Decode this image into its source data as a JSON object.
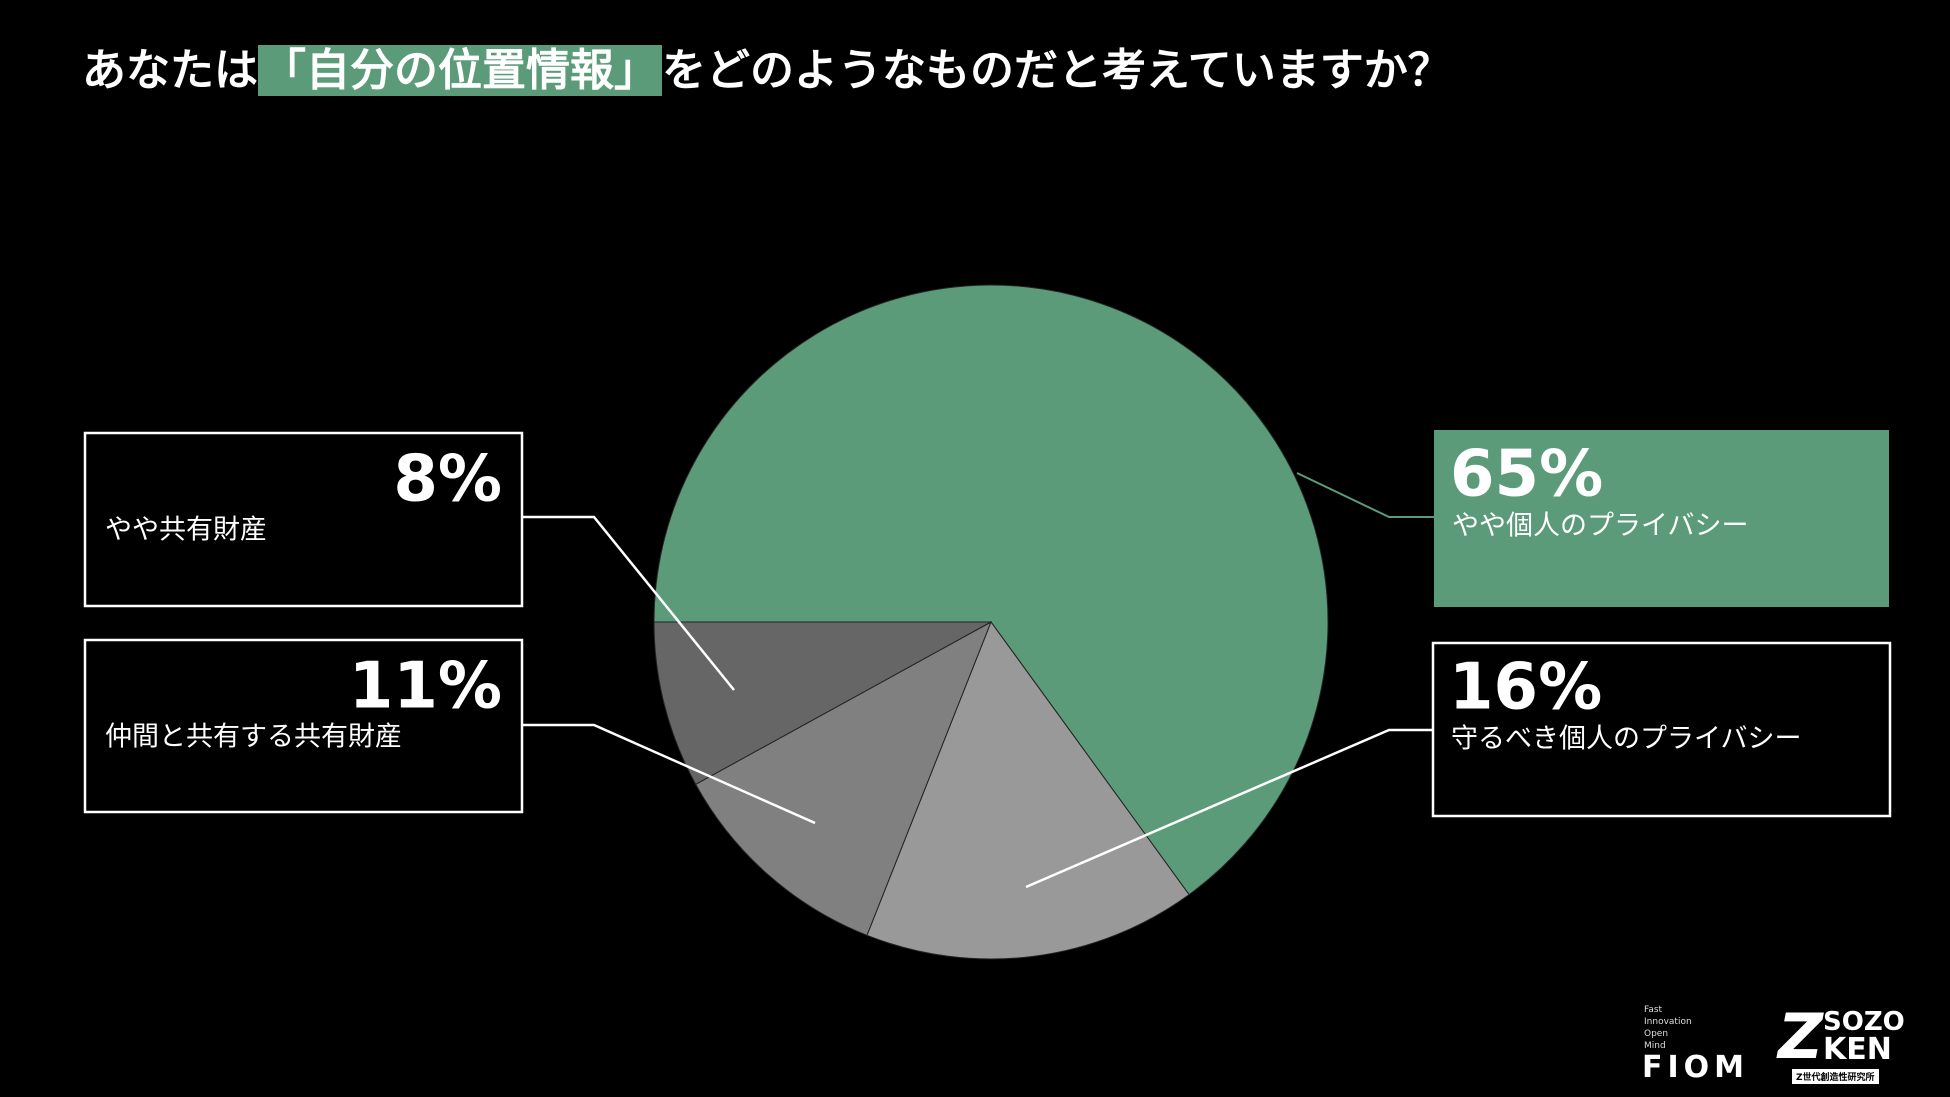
{
  "chart_data": {
    "type": "pie",
    "title": [
      "あなたは",
      "「自分の位置情報」",
      "をどのようなものだと考えていますか？"
    ],
    "categories": [
      "やや個人のプライバシー",
      "守るべき個人のプライバシー",
      "仲間と共有する共有財産",
      "やや共有財産"
    ],
    "values": [
      65,
      16,
      11,
      8
    ],
    "value_labels": [
      "65%",
      "16%",
      "11%",
      "8%"
    ],
    "colors": [
      "#5b9b79",
      "#999999",
      "#808080",
      "#666666"
    ]
  },
  "branding": {
    "fiom_tagline": [
      "Fast",
      "Innovation",
      "Open",
      "Mind"
    ],
    "fiom": "FIOM",
    "sozo_mark": "Z",
    "sozo_top": "SOZO",
    "sozo_bottom": "KEN",
    "sozo_sub": "Z世代創造性研究所"
  }
}
